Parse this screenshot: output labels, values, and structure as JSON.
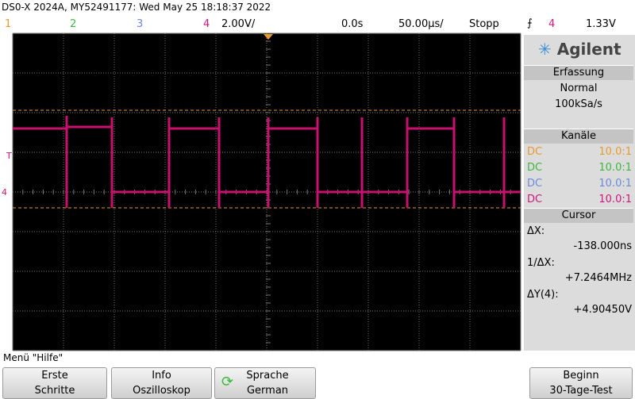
{
  "header": {
    "title": "DS0-X 2024A, MY52491177: Wed May 25 18:18:37 2022"
  },
  "status_bar": {
    "channels": [
      "1",
      "2",
      "3",
      "4"
    ],
    "scale": "2.00V/",
    "delay": "0.0s",
    "timebase": "50.00µs/",
    "run_state": "Stopp",
    "trigger_icon": "⨍",
    "trigger_source": "4",
    "trigger_level": "1.33V"
  },
  "display": {
    "trigger_marker": "T",
    "ground_marker": "4"
  },
  "side_panel": {
    "brand": "Agilent",
    "acquisition": {
      "title": "Erfassung",
      "mode": "Normal",
      "rate": "100kSa/s"
    },
    "channels": {
      "title": "Kanäle",
      "rows": [
        {
          "coupling": "DC",
          "probe": "10.0:1"
        },
        {
          "coupling": "DC",
          "probe": "10.0:1"
        },
        {
          "coupling": "DC",
          "probe": "10.0:1"
        },
        {
          "coupling": "DC",
          "probe": "10.0:1"
        }
      ]
    },
    "cursor": {
      "title": "Cursor",
      "rows": [
        {
          "label": "ΔX:",
          "value": "-138.000ns"
        },
        {
          "label": "1/ΔX:",
          "value": "+7.2464MHz"
        },
        {
          "label": "ΔY(4):",
          "value": "+4.90450V"
        }
      ]
    }
  },
  "softkeys": {
    "menu_title": "Menü \"Hilfe\"",
    "buttons": [
      [
        "Erste",
        "Schritte"
      ],
      [
        "Info",
        "Oszilloskop"
      ],
      [
        "Sprache",
        "German"
      ],
      [
        "Beginn",
        "30-Tage-Test"
      ]
    ]
  }
}
